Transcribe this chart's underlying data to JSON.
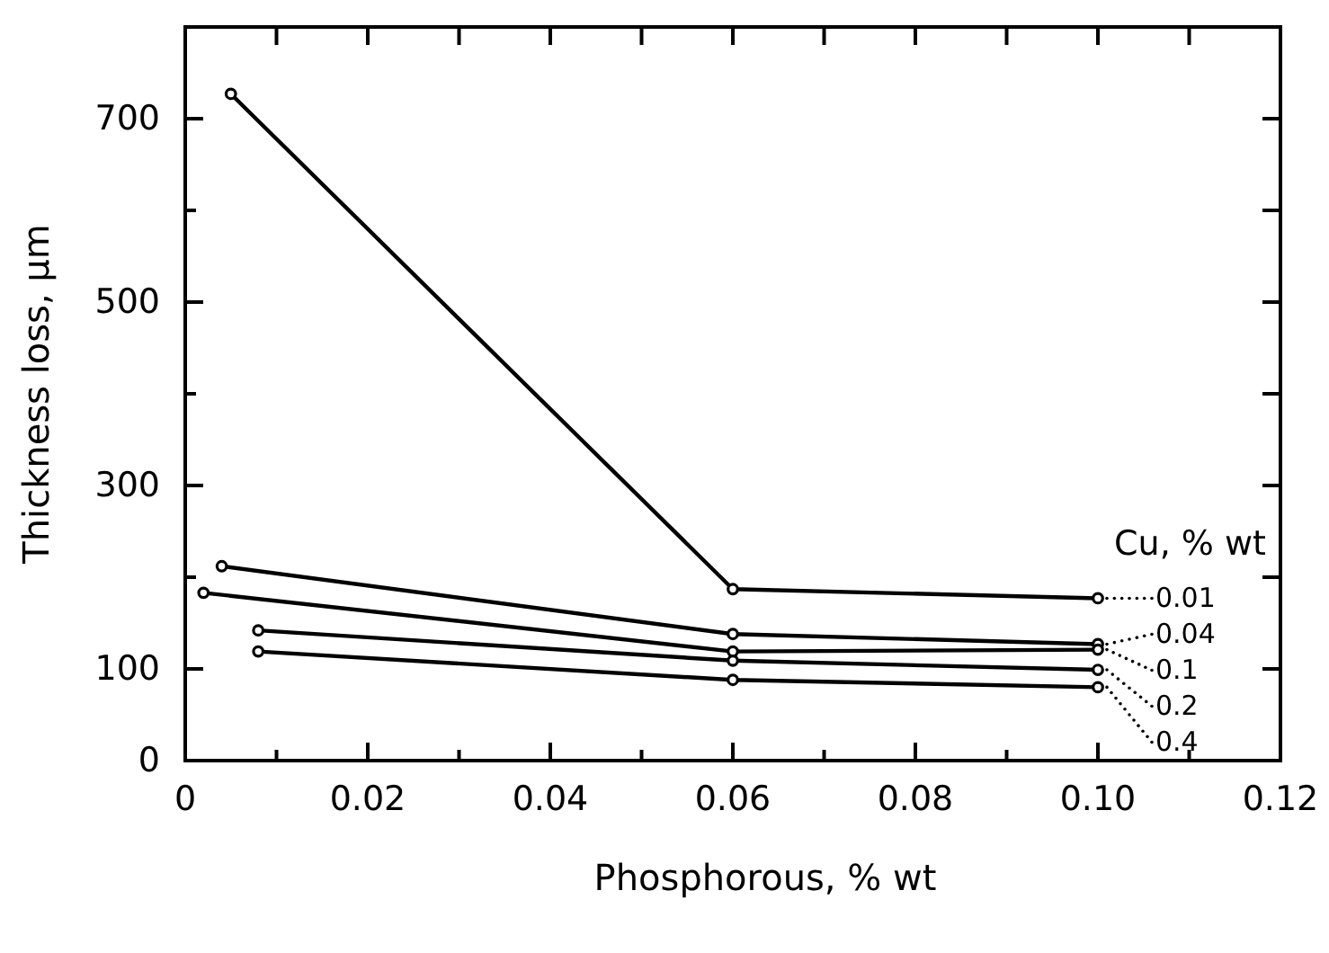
{
  "chart_data": {
    "type": "line",
    "xlabel": "Phosphorous, % wt",
    "ylabel": "Thickness loss, µm",
    "legend_title": "Cu, % wt",
    "xlim": [
      0,
      0.12
    ],
    "xticks": [
      0,
      0.02,
      0.04,
      0.06,
      0.08,
      {
        "value": 0.1,
        "label": "0.10"
      },
      0.12,
      {
        "value": 0.01,
        "label": null
      },
      {
        "value": 0.03,
        "label": null
      },
      {
        "value": 0.05,
        "label": null
      },
      {
        "value": 0.07,
        "label": null
      },
      {
        "value": 0.09,
        "label": null
      },
      {
        "value": 0.11,
        "label": null
      }
    ],
    "ylim": [
      0,
      800
    ],
    "yticks": [
      0,
      {
        "value": 200,
        "label": null
      },
      100,
      300,
      {
        "value": 400,
        "label": null
      },
      500,
      {
        "value": 600,
        "label": null
      },
      700,
      {
        "value": 800,
        "label": null
      }
    ],
    "marker": "circle",
    "line_style": "solid",
    "legend": "right",
    "series": [
      {
        "name": "0.01",
        "color": "#000000",
        "x": [
          0.005,
          0.06,
          0.1
        ],
        "values": [
          727,
          187,
          177
        ]
      },
      {
        "name": "0.04",
        "color": "#000000",
        "x": [
          0.004,
          0.06,
          0.1
        ],
        "values": [
          212,
          138,
          127
        ]
      },
      {
        "name": "0.1",
        "color": "#000000",
        "x": [
          0.002,
          0.06,
          0.1
        ],
        "values": [
          183,
          119,
          121
        ]
      },
      {
        "name": "0.2",
        "color": "#000000",
        "x": [
          0.008,
          0.06,
          0.1
        ],
        "values": [
          142,
          109,
          99
        ]
      },
      {
        "name": "0.4",
        "color": "#000000",
        "x": [
          0.008,
          0.06,
          0.1
        ],
        "values": [
          119,
          88,
          80
        ]
      }
    ]
  }
}
